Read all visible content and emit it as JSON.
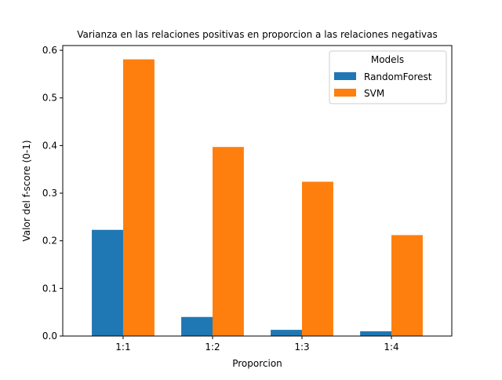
{
  "chart_data": {
    "type": "bar",
    "title": "Varianza en las relaciones positivas en proporcion a las relaciones negativas",
    "xlabel": "Proporcion",
    "ylabel": "Valor del f-score (0-1)",
    "categories": [
      "1:1",
      "1:2",
      "1:3",
      "1:4"
    ],
    "series": [
      {
        "name": "RandomForest",
        "color": "#1f77b4",
        "values": [
          0.223,
          0.04,
          0.013,
          0.01
        ]
      },
      {
        "name": "SVM",
        "color": "#ff7f0e",
        "values": [
          0.581,
          0.397,
          0.324,
          0.212
        ]
      }
    ],
    "ylim": [
      0,
      0.61
    ],
    "yticks": [
      0.0,
      0.1,
      0.2,
      0.3,
      0.4,
      0.5,
      0.6
    ],
    "ytick_labels": [
      "0.0",
      "0.1",
      "0.2",
      "0.3",
      "0.4",
      "0.5",
      "0.6"
    ],
    "legend": {
      "title": "Models",
      "placement": "top-right"
    },
    "grid": false
  }
}
